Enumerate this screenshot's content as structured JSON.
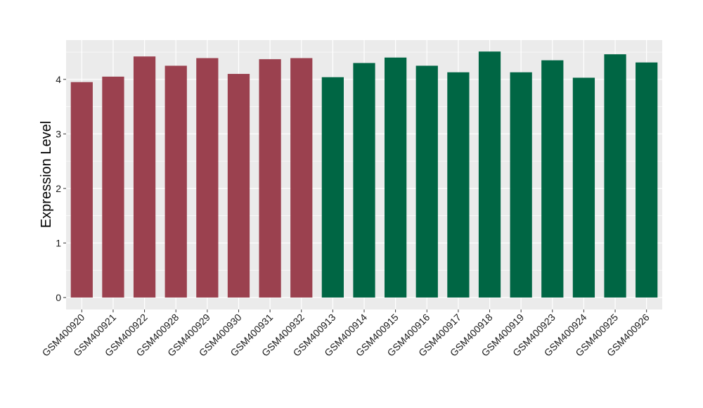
{
  "chart_data": {
    "type": "bar",
    "title": "",
    "xlabel": "",
    "ylabel": "Expression Level",
    "ylim": [
      -0.22,
      4.72
    ],
    "yticks": [
      0,
      1,
      2,
      3,
      4
    ],
    "grid": true,
    "legend": "none",
    "categories": [
      "GSM400920",
      "GSM400921",
      "GSM400922",
      "GSM400928",
      "GSM400929",
      "GSM400930",
      "GSM400931",
      "GSM400932",
      "GSM400913",
      "GSM400914",
      "GSM400915",
      "GSM400916",
      "GSM400917",
      "GSM400918",
      "GSM400919",
      "GSM400923",
      "GSM400924",
      "GSM400925",
      "GSM400926"
    ],
    "values": [
      3.95,
      4.05,
      4.42,
      4.25,
      4.39,
      4.1,
      4.37,
      4.39,
      4.04,
      4.3,
      4.4,
      4.25,
      4.13,
      4.51,
      4.13,
      4.35,
      4.03,
      4.46,
      4.31
    ],
    "group_sizes": [
      8,
      11
    ],
    "colors": {
      "group_1": "#9b414f",
      "group_2": "#006644",
      "panel_background": "#ebebeb",
      "grid": "#ffffff"
    }
  }
}
